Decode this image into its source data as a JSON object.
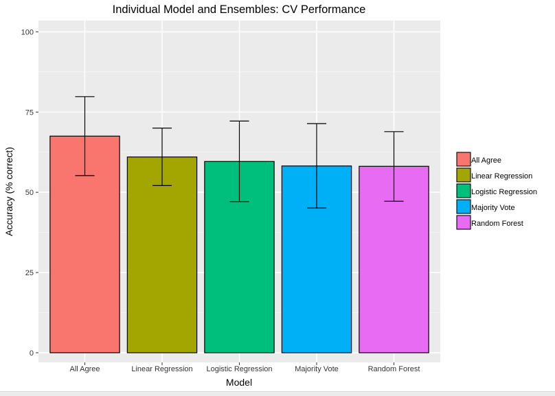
{
  "chart_data": {
    "type": "bar",
    "title": "Individual Model and Ensembles: CV Performance",
    "xlabel": "Model",
    "ylabel": "Accuracy (% correct)",
    "ylim": [
      -3,
      103.5
    ],
    "yticks": [
      0,
      25,
      50,
      75,
      100
    ],
    "grid": true,
    "legend_position": "right",
    "categories": [
      "All Agree",
      "Linear Regression",
      "Logistic Regression",
      "Majority Vote",
      "Random Forest"
    ],
    "values": [
      67.5,
      61.0,
      59.6,
      58.2,
      58.1
    ],
    "error_low": [
      55.2,
      52.1,
      47.1,
      45.1,
      47.2
    ],
    "error_high": [
      79.8,
      70.0,
      72.2,
      71.4,
      68.9
    ],
    "colors": [
      "#F8766D",
      "#A3A500",
      "#00BF7D",
      "#00B0F6",
      "#E76BF3"
    ],
    "legend": [
      "All Agree",
      "Linear Regression",
      "Logistic Regression",
      "Majority Vote",
      "Random Forest"
    ]
  }
}
